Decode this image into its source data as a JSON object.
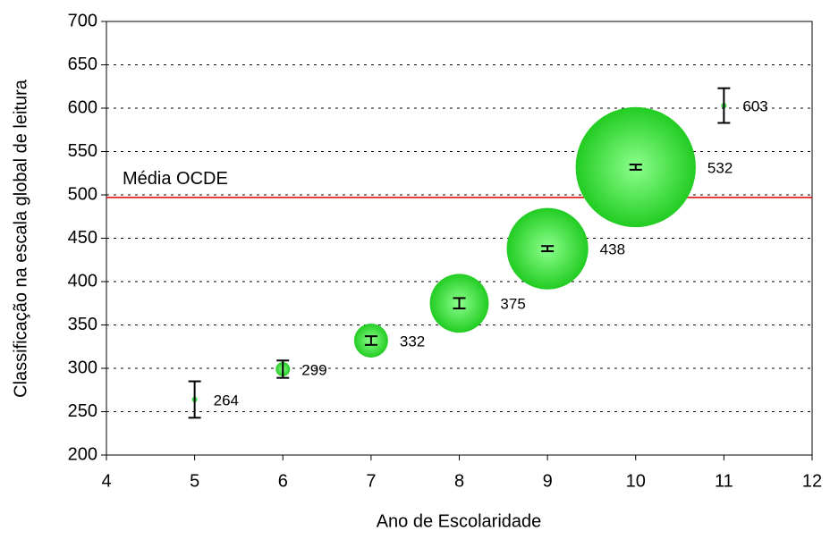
{
  "chart_data": {
    "type": "bubble",
    "x_label": "Ano de Escolaridade",
    "y_label": "Classificação na escala global de leitura",
    "x": [
      5,
      6,
      7,
      8,
      9,
      10,
      11
    ],
    "values": [
      264,
      299,
      332,
      375,
      438,
      532,
      603
    ],
    "sizes": [
      0.1,
      0.7,
      4,
      12,
      23,
      50,
      0.1
    ],
    "errors": [
      21,
      10,
      5,
      6,
      3,
      3,
      20
    ],
    "color": "#22cc22",
    "xlim": [
      4,
      12
    ],
    "xticks": [
      4,
      5,
      6,
      7,
      8,
      9,
      10,
      11,
      12
    ],
    "ylim": [
      200,
      700
    ],
    "yticks": [
      200,
      250,
      300,
      350,
      400,
      450,
      500,
      550,
      600,
      650,
      700
    ],
    "grid": true,
    "reference_line": {
      "value": 497,
      "label": "Média OCDE",
      "color": "#dd0000"
    }
  }
}
